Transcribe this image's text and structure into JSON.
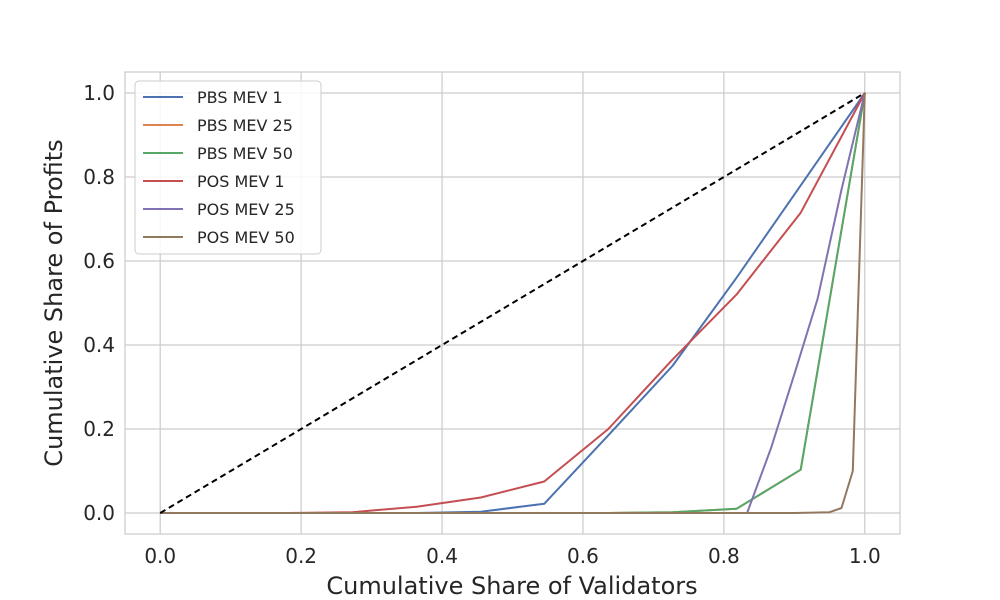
{
  "chart_data": {
    "type": "line",
    "xlabel": "Cumulative Share of Validators",
    "ylabel": "Cumulative Share of Profits",
    "xlim": [
      -0.05,
      1.05
    ],
    "ylim": [
      -0.05,
      1.05
    ],
    "xticks": [
      "0.0",
      "0.2",
      "0.4",
      "0.6",
      "0.8",
      "1.0"
    ],
    "yticks": [
      "0.0",
      "0.2",
      "0.4",
      "0.6",
      "0.8",
      "1.0"
    ],
    "grid": true,
    "legend_position": "top-left",
    "reference_line": {
      "x": [
        0,
        1
      ],
      "y": [
        0,
        1
      ],
      "style": "dashed",
      "color": "#000000"
    },
    "series": [
      {
        "name": "PBS MEV 1",
        "color": "#4c72b0",
        "x": [
          0,
          0.091,
          0.182,
          0.273,
          0.364,
          0.455,
          0.545,
          0.636,
          0.727,
          0.818,
          0.909,
          1.0
        ],
        "y": [
          0,
          0,
          0,
          0,
          0,
          0.003,
          0.022,
          0.185,
          0.35,
          0.56,
          0.78,
          1.0
        ]
      },
      {
        "name": "PBS MEV 25",
        "color": "#dd8452",
        "x": [
          0,
          0.091,
          0.182,
          0.273,
          0.364,
          0.455,
          0.545,
          0.636,
          0.727,
          0.818,
          0.909,
          1.0
        ],
        "y": [
          0,
          0,
          0,
          0,
          0,
          0,
          0,
          0,
          0.002,
          0.01,
          0.103,
          1.0
        ]
      },
      {
        "name": "PBS MEV 50",
        "color": "#55a868",
        "x": [
          0,
          0.091,
          0.182,
          0.273,
          0.364,
          0.455,
          0.545,
          0.636,
          0.727,
          0.818,
          0.909,
          1.0
        ],
        "y": [
          0,
          0,
          0,
          0,
          0,
          0,
          0,
          0,
          0.002,
          0.01,
          0.103,
          1.0
        ]
      },
      {
        "name": "POS MEV 1",
        "color": "#c44e52",
        "x": [
          0,
          0.091,
          0.182,
          0.273,
          0.364,
          0.455,
          0.545,
          0.636,
          0.727,
          0.818,
          0.909,
          1.0
        ],
        "y": [
          0,
          0,
          0,
          0.002,
          0.015,
          0.037,
          0.075,
          0.2,
          0.365,
          0.52,
          0.715,
          1.0
        ]
      },
      {
        "name": "POS MEV 25",
        "color": "#8172b3",
        "x": [
          0,
          0.2,
          0.4,
          0.6,
          0.8,
          0.833,
          0.867,
          0.9,
          0.933,
          0.967,
          1.0
        ],
        "y": [
          0,
          0,
          0,
          0,
          0,
          0,
          0.155,
          0.33,
          0.51,
          0.77,
          1.0
        ]
      },
      {
        "name": "POS MEV 50",
        "color": "#937860",
        "x": [
          0,
          0.2,
          0.4,
          0.6,
          0.8,
          0.9,
          0.95,
          0.967,
          0.983,
          1.0
        ],
        "y": [
          0,
          0,
          0,
          0,
          0,
          0,
          0.002,
          0.012,
          0.1,
          1.0
        ]
      }
    ]
  }
}
